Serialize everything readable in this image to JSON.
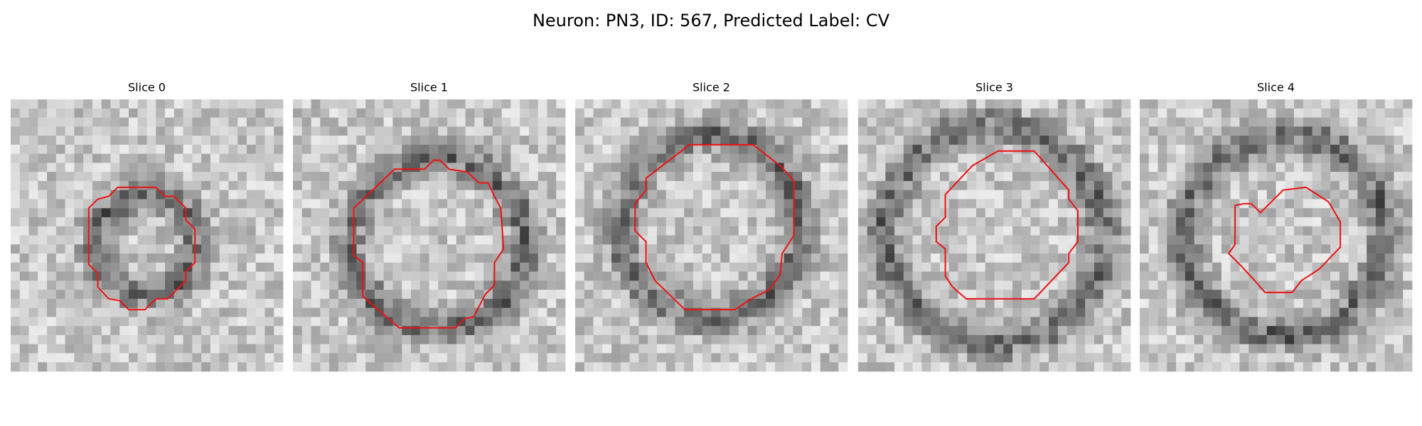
{
  "title": "Neuron: PN3, ID: 567, Predicted Label: CV",
  "panels": [
    {
      "title": "Slice 0"
    },
    {
      "title": "Slice 1"
    },
    {
      "title": "Slice 2"
    },
    {
      "title": "Slice 3"
    },
    {
      "title": "Slice 4"
    }
  ]
}
